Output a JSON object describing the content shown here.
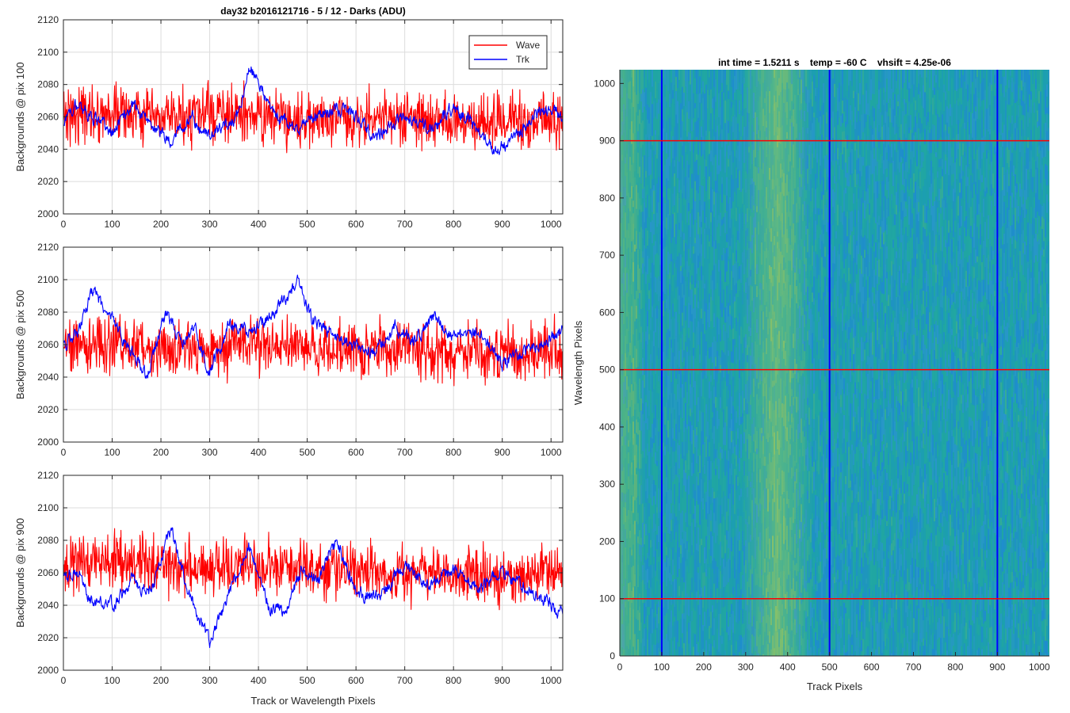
{
  "figure": {
    "suptitle": "day32 b2016121716 - 5 / 12 - Darks (ADU)"
  },
  "chart_data": [
    {
      "type": "line",
      "panel": "profile-pix-100",
      "title": "day32 b2016121716 - 5 / 12 - Darks (ADU)",
      "ylabel": "Backgrounds @ pix 100",
      "xlabel": "",
      "xlim": [
        0,
        1024
      ],
      "ylim": [
        2000,
        2120
      ],
      "xticks": [
        0,
        100,
        200,
        300,
        400,
        500,
        600,
        700,
        800,
        900,
        1000
      ],
      "yticks": [
        2000,
        2020,
        2040,
        2060,
        2080,
        2100,
        2120
      ],
      "grid": true,
      "legend": "top-right",
      "series": [
        {
          "name": "Wave",
          "color": "#ff0000",
          "x_range": [
            1,
            1024
          ],
          "mean": 2060,
          "noise": 12,
          "anchors": [
            [
              1,
              2062
            ],
            [
              100,
              2063
            ],
            [
              200,
              2058
            ],
            [
              300,
              2062
            ],
            [
              400,
              2060
            ],
            [
              500,
              2058
            ],
            [
              600,
              2060
            ],
            [
              700,
              2058
            ],
            [
              800,
              2057
            ],
            [
              900,
              2056
            ],
            [
              1024,
              2058
            ]
          ]
        },
        {
          "name": "Trk",
          "color": "#0000ff",
          "x_range": [
            1,
            1024
          ],
          "mean": 2058,
          "noise": 4,
          "anchors": [
            [
              1,
              2058
            ],
            [
              30,
              2068
            ],
            [
              60,
              2060
            ],
            [
              100,
              2050
            ],
            [
              140,
              2068
            ],
            [
              180,
              2055
            ],
            [
              220,
              2045
            ],
            [
              260,
              2060
            ],
            [
              300,
              2048
            ],
            [
              340,
              2055
            ],
            [
              360,
              2063
            ],
            [
              380,
              2092
            ],
            [
              410,
              2075
            ],
            [
              440,
              2060
            ],
            [
              480,
              2053
            ],
            [
              520,
              2062
            ],
            [
              580,
              2065
            ],
            [
              640,
              2048
            ],
            [
              700,
              2060
            ],
            [
              760,
              2052
            ],
            [
              800,
              2066
            ],
            [
              840,
              2055
            ],
            [
              880,
              2040
            ],
            [
              920,
              2045
            ],
            [
              960,
              2060
            ],
            [
              1000,
              2065
            ],
            [
              1024,
              2060
            ]
          ]
        }
      ]
    },
    {
      "type": "line",
      "panel": "profile-pix-500",
      "ylabel": "Backgrounds @ pix 500",
      "xlabel": "",
      "xlim": [
        0,
        1024
      ],
      "ylim": [
        2000,
        2120
      ],
      "xticks": [
        0,
        100,
        200,
        300,
        400,
        500,
        600,
        700,
        800,
        900,
        1000
      ],
      "yticks": [
        2000,
        2020,
        2040,
        2060,
        2080,
        2100,
        2120
      ],
      "grid": true,
      "series": [
        {
          "name": "Wave",
          "color": "#ff0000",
          "x_range": [
            1,
            1024
          ],
          "mean": 2058,
          "noise": 12,
          "anchors": [
            [
              1,
              2060
            ],
            [
              100,
              2060
            ],
            [
              200,
              2058
            ],
            [
              300,
              2058
            ],
            [
              400,
              2060
            ],
            [
              500,
              2058
            ],
            [
              600,
              2056
            ],
            [
              700,
              2058
            ],
            [
              800,
              2056
            ],
            [
              900,
              2055
            ],
            [
              1024,
              2056
            ]
          ]
        },
        {
          "name": "Trk",
          "color": "#0000ff",
          "x_range": [
            1,
            1024
          ],
          "mean": 2062,
          "noise": 4,
          "anchors": [
            [
              1,
              2060
            ],
            [
              30,
              2068
            ],
            [
              60,
              2093
            ],
            [
              100,
              2075
            ],
            [
              140,
              2055
            ],
            [
              170,
              2040
            ],
            [
              210,
              2080
            ],
            [
              240,
              2060
            ],
            [
              270,
              2070
            ],
            [
              300,
              2043
            ],
            [
              340,
              2072
            ],
            [
              380,
              2068
            ],
            [
              420,
              2077
            ],
            [
              460,
              2090
            ],
            [
              480,
              2100
            ],
            [
              510,
              2075
            ],
            [
              560,
              2065
            ],
            [
              600,
              2058
            ],
            [
              640,
              2055
            ],
            [
              680,
              2070
            ],
            [
              720,
              2062
            ],
            [
              760,
              2078
            ],
            [
              800,
              2063
            ],
            [
              850,
              2068
            ],
            [
              900,
              2048
            ],
            [
              940,
              2055
            ],
            [
              980,
              2060
            ],
            [
              1024,
              2070
            ]
          ]
        }
      ]
    },
    {
      "type": "line",
      "panel": "profile-pix-900",
      "ylabel": "Backgrounds @ pix 900",
      "xlabel": "Track or Wavelength Pixels",
      "xlim": [
        0,
        1024
      ],
      "ylim": [
        2000,
        2120
      ],
      "xticks": [
        0,
        100,
        200,
        300,
        400,
        500,
        600,
        700,
        800,
        900,
        1000
      ],
      "yticks": [
        2000,
        2020,
        2040,
        2060,
        2080,
        2100,
        2120
      ],
      "grid": true,
      "series": [
        {
          "name": "Wave",
          "color": "#ff0000",
          "x_range": [
            1,
            1024
          ],
          "mean": 2062,
          "noise": 12,
          "anchors": [
            [
              1,
              2065
            ],
            [
              100,
              2068
            ],
            [
              200,
              2065
            ],
            [
              300,
              2062
            ],
            [
              400,
              2064
            ],
            [
              500,
              2062
            ],
            [
              600,
              2062
            ],
            [
              700,
              2060
            ],
            [
              800,
              2060
            ],
            [
              900,
              2058
            ],
            [
              1024,
              2058
            ]
          ]
        },
        {
          "name": "Trk",
          "color": "#0000ff",
          "x_range": [
            1,
            1024
          ],
          "mean": 2050,
          "noise": 4,
          "anchors": [
            [
              1,
              2058
            ],
            [
              30,
              2060
            ],
            [
              60,
              2042
            ],
            [
              100,
              2040
            ],
            [
              140,
              2055
            ],
            [
              180,
              2048
            ],
            [
              220,
              2088
            ],
            [
              250,
              2055
            ],
            [
              280,
              2030
            ],
            [
              300,
              2018
            ],
            [
              330,
              2040
            ],
            [
              380,
              2076
            ],
            [
              420,
              2040
            ],
            [
              450,
              2035
            ],
            [
              490,
              2063
            ],
            [
              520,
              2055
            ],
            [
              560,
              2080
            ],
            [
              600,
              2048
            ],
            [
              650,
              2045
            ],
            [
              700,
              2065
            ],
            [
              750,
              2052
            ],
            [
              800,
              2062
            ],
            [
              850,
              2050
            ],
            [
              900,
              2060
            ],
            [
              950,
              2050
            ],
            [
              1000,
              2040
            ],
            [
              1024,
              2035
            ]
          ]
        }
      ]
    },
    {
      "type": "heatmap",
      "panel": "image",
      "title": "int time = 1.5211 s    temp = -60 C    vhsift = 4.25e-06",
      "xlabel": "Track Pixels",
      "ylabel": "Wavelength Pixels",
      "xlim": [
        0,
        1024
      ],
      "ylim": [
        0,
        1024
      ],
      "xticks": [
        0,
        100,
        200,
        300,
        400,
        500,
        600,
        700,
        800,
        900,
        1000
      ],
      "yticks": [
        0,
        100,
        200,
        300,
        400,
        500,
        600,
        700,
        800,
        900,
        1000
      ],
      "colormap": "parula",
      "colors": {
        "low": "#1f8fd6",
        "mid": "#1ea3a6",
        "high": "#a8c94f"
      },
      "bright_band_columns": [
        [
          290,
          460
        ],
        [
          0,
          60
        ]
      ],
      "vertical_lines": {
        "x": [
          100,
          500,
          900
        ],
        "color": "#0000ff"
      },
      "horizontal_lines": {
        "y": [
          100,
          500,
          900
        ],
        "color": "#ff0000"
      }
    }
  ]
}
